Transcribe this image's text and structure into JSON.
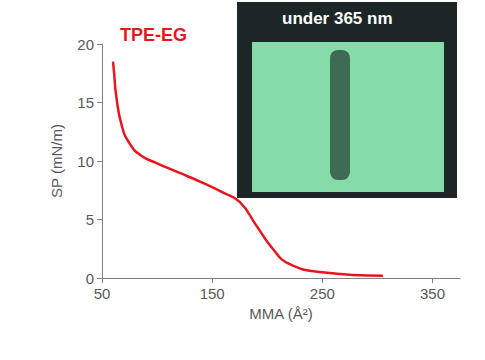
{
  "chart_data": {
    "type": "line",
    "x_label": "MMA (Å²)",
    "y_label": "SP (mN/m)",
    "series": [
      {
        "name": "TPE-EG",
        "color": "#e8141e",
        "x": [
          60,
          61,
          63,
          68,
          75,
          85,
          100,
          120,
          140,
          160,
          175,
          190,
          205,
          220,
          250,
          305
        ],
        "values": [
          18.5,
          17.5,
          15.5,
          13,
          11.5,
          10.5,
          9.8,
          9,
          8.2,
          7.3,
          6.5,
          4.5,
          2.5,
          1.2,
          0.5,
          0.2
        ]
      }
    ],
    "xlim": [
      50,
      375
    ],
    "xticks": [
      50,
      150,
      250,
      350
    ],
    "ylim": [
      0,
      20
    ],
    "yticks": [
      0,
      5,
      10,
      15,
      20
    ],
    "grid": false,
    "annotations": [
      {
        "text": "TPE-EG",
        "color": "#e8141e"
      },
      {
        "text": "under 365 nm",
        "color": "#ffffff"
      }
    ]
  }
}
